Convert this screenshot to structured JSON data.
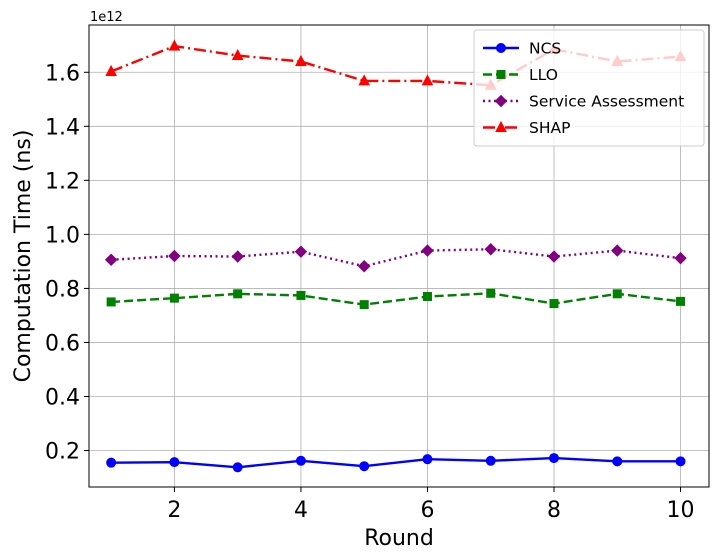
{
  "chart_data": {
    "type": "line",
    "xlabel": "Round",
    "ylabel": "Computation Time (ns)",
    "y_offset_label": "1e12",
    "x": [
      1,
      2,
      3,
      4,
      5,
      6,
      7,
      8,
      9,
      10
    ],
    "xlim": [
      0.65,
      10.45
    ],
    "ylim": [
      0.065,
      1.775
    ],
    "x_ticks": [
      2,
      4,
      6,
      8,
      10
    ],
    "x_tick_labels": [
      "2",
      "4",
      "6",
      "8",
      "10"
    ],
    "y_ticks": [
      0.2,
      0.4,
      0.6,
      0.8,
      1.0,
      1.2,
      1.4,
      1.6
    ],
    "y_tick_labels": [
      "0.2",
      "0.4",
      "0.6",
      "0.8",
      "1.0",
      "1.2",
      "1.4",
      "1.6"
    ],
    "grid": true,
    "legend_position": "top-right",
    "series": [
      {
        "name": "NCS",
        "color": "#0000ff",
        "dash": "solid",
        "marker": "circle",
        "values": [
          0.155,
          0.157,
          0.138,
          0.162,
          0.142,
          0.168,
          0.162,
          0.172,
          0.16,
          0.16
        ]
      },
      {
        "name": "LLO",
        "color": "#008000",
        "dash": "dashed",
        "marker": "square",
        "values": [
          0.75,
          0.764,
          0.78,
          0.774,
          0.74,
          0.77,
          0.782,
          0.744,
          0.78,
          0.752
        ]
      },
      {
        "name": "Service Assessment",
        "color": "#800080",
        "dash": "dotted",
        "marker": "diamond",
        "values": [
          0.906,
          0.92,
          0.918,
          0.936,
          0.882,
          0.94,
          0.945,
          0.918,
          0.94,
          0.912
        ]
      },
      {
        "name": "SHAP",
        "color": "#ff0000",
        "dash": "dashdot",
        "marker": "triangle",
        "values": [
          1.603,
          1.697,
          1.662,
          1.64,
          1.568,
          1.568,
          1.552,
          1.685,
          1.64,
          1.658
        ]
      }
    ]
  }
}
